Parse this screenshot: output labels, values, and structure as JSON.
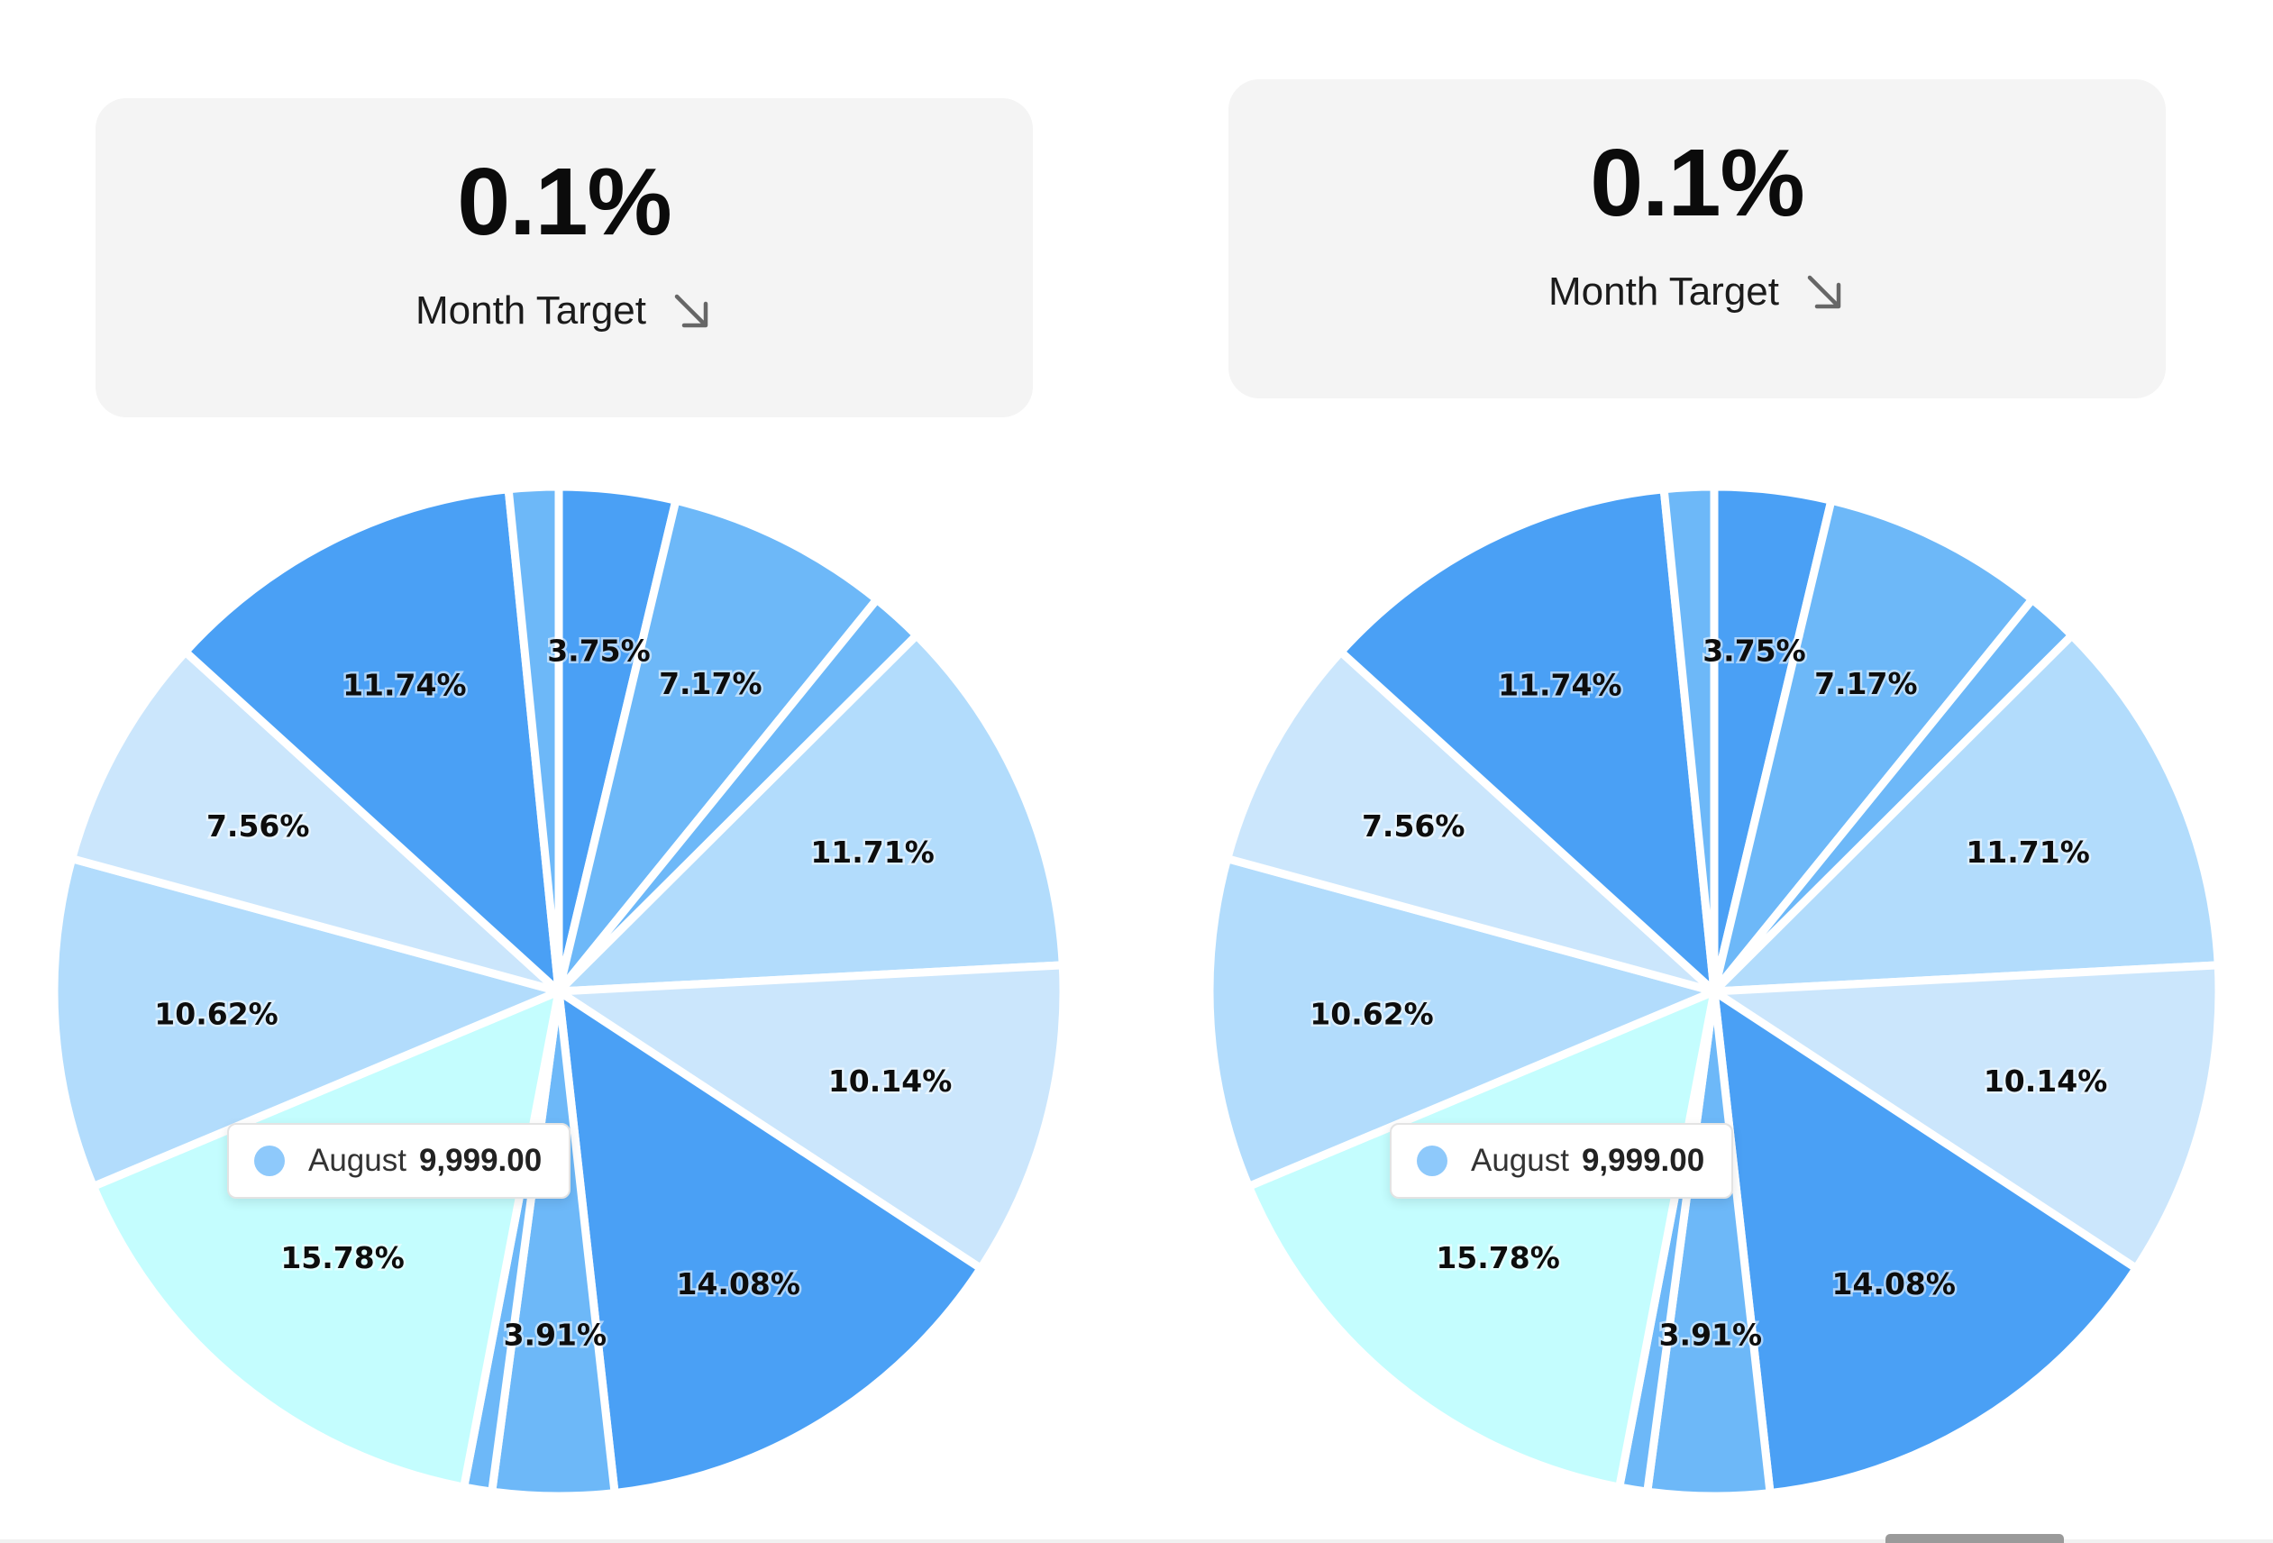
{
  "colors": {
    "slice_palette": [
      "#4aa0f5",
      "#6db8f8",
      "#b2dcfc",
      "#cbe6fc",
      "#c4fdfe"
    ],
    "card_background": "#f4f4f4",
    "tooltip_dot": "#8ec9fb"
  },
  "panels": [
    {
      "kpi": {
        "value": "0.1%",
        "label": "Month Target",
        "trend_icon": "arrow-down-right-icon"
      },
      "tooltip": {
        "name": "August",
        "value": "9,999.00"
      }
    },
    {
      "kpi": {
        "value": "0.1%",
        "label": "Month Target",
        "trend_icon": "arrow-down-right-icon"
      },
      "tooltip": {
        "name": "August",
        "value": "9,999.00"
      }
    }
  ],
  "chart_data": [
    {
      "type": "pie",
      "slices": [
        {
          "value": 3.75,
          "label": "3.75%",
          "color": "#4aa0f5"
        },
        {
          "value": 7.17,
          "label": "7.17%",
          "color": "#6db8f8"
        },
        {
          "value": 1.7,
          "label": "",
          "color": "#6db8f8"
        },
        {
          "value": 11.71,
          "label": "11.71%",
          "color": "#b2dcfc"
        },
        {
          "value": 10.14,
          "label": "10.14%",
          "color": "#cbe6fc"
        },
        {
          "value": 14.08,
          "label": "14.08%",
          "color": "#4aa0f5"
        },
        {
          "value": 3.91,
          "label": "3.91%",
          "color": "#6db8f8"
        },
        {
          "value": 0.9,
          "label": "",
          "color": "#6db8f8"
        },
        {
          "value": 15.78,
          "label": "15.78%",
          "color": "#c4fdfe"
        },
        {
          "value": 10.62,
          "label": "10.62%",
          "color": "#b2dcfc"
        },
        {
          "value": 7.56,
          "label": "7.56%",
          "color": "#cbe6fc"
        },
        {
          "value": 11.74,
          "label": "11.74%",
          "color": "#4aa0f5"
        },
        {
          "value": 1.6,
          "label": "",
          "color": "#6db8f8"
        }
      ]
    },
    {
      "type": "pie",
      "slices": [
        {
          "value": 3.75,
          "label": "3.75%",
          "color": "#4aa0f5"
        },
        {
          "value": 7.17,
          "label": "7.17%",
          "color": "#6db8f8"
        },
        {
          "value": 1.7,
          "label": "",
          "color": "#6db8f8"
        },
        {
          "value": 11.71,
          "label": "11.71%",
          "color": "#b2dcfc"
        },
        {
          "value": 10.14,
          "label": "10.14%",
          "color": "#cbe6fc"
        },
        {
          "value": 14.08,
          "label": "14.08%",
          "color": "#4aa0f5"
        },
        {
          "value": 3.91,
          "label": "3.91%",
          "color": "#6db8f8"
        },
        {
          "value": 0.9,
          "label": "",
          "color": "#6db8f8"
        },
        {
          "value": 15.78,
          "label": "15.78%",
          "color": "#c4fdfe"
        },
        {
          "value": 10.62,
          "label": "10.62%",
          "color": "#b2dcfc"
        },
        {
          "value": 7.56,
          "label": "7.56%",
          "color": "#cbe6fc"
        },
        {
          "value": 11.74,
          "label": "11.74%",
          "color": "#4aa0f5"
        },
        {
          "value": 1.6,
          "label": "",
          "color": "#6db8f8"
        }
      ]
    }
  ]
}
